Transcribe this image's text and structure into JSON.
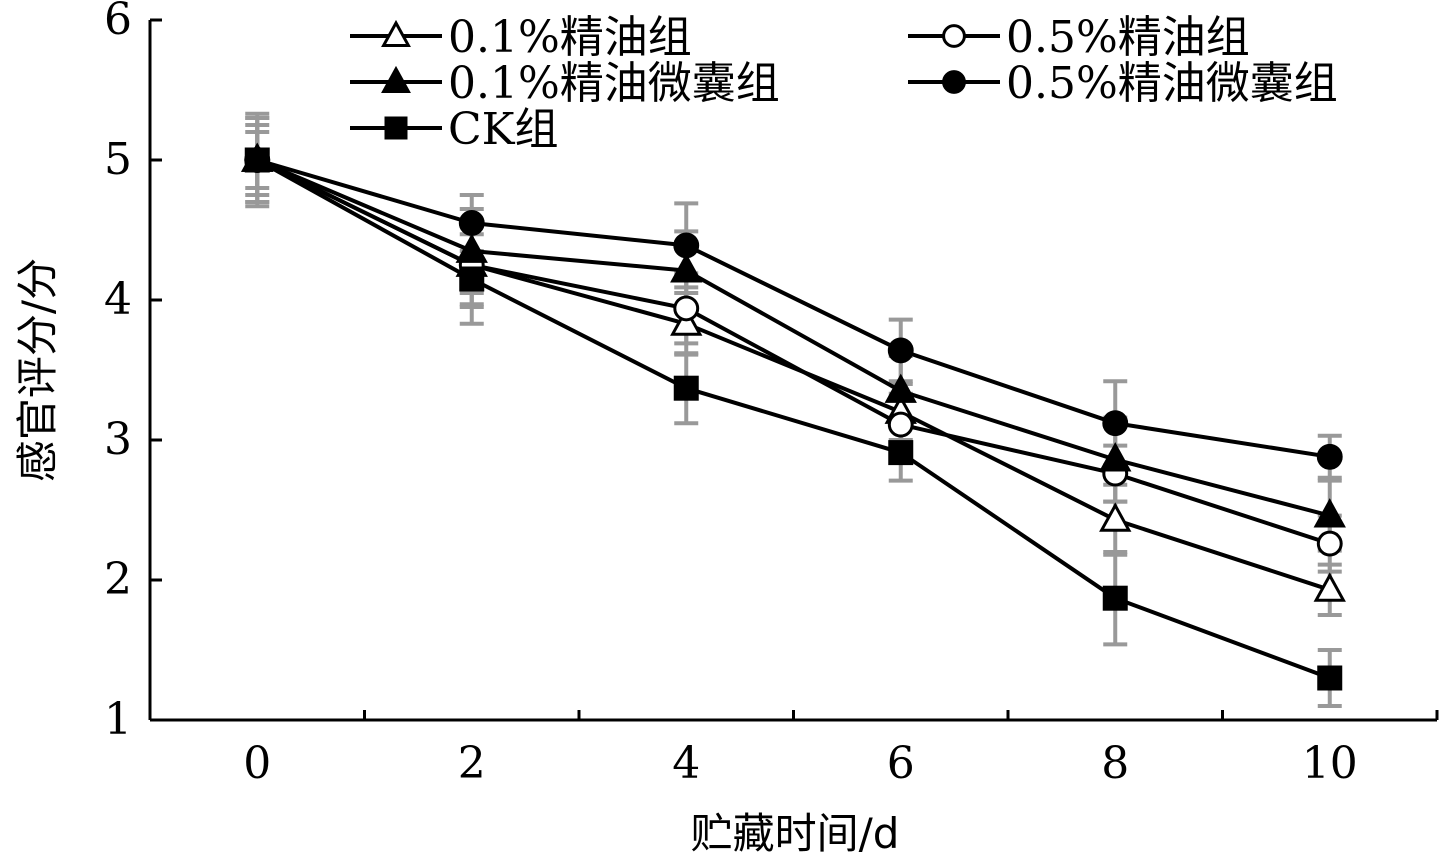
{
  "chart_data": {
    "type": "line",
    "xlabel": "贮藏时间/d",
    "ylabel": "感官评分/分",
    "x": [
      0,
      2,
      4,
      6,
      8,
      10
    ],
    "xlim": [
      -1,
      11
    ],
    "ylim": [
      1,
      6
    ],
    "x_ticks": [
      "0",
      "2",
      "4",
      "6",
      "8",
      "10"
    ],
    "y_ticks": [
      "1",
      "2",
      "3",
      "4",
      "5",
      "6"
    ],
    "grid": false,
    "legend_position": "top",
    "error_bar_color": "#999999",
    "line_color": "#000000",
    "series": [
      {
        "name": "0.1%精油组",
        "marker": "triangle-open",
        "values": [
          5.0,
          4.25,
          3.83,
          3.2,
          2.43,
          1.93
        ],
        "errors": [
          0.25,
          0.28,
          0.22,
          0.2,
          0.25,
          0.18
        ]
      },
      {
        "name": "0.5%精油组",
        "marker": "circle-open",
        "values": [
          5.0,
          4.25,
          3.94,
          3.11,
          2.76,
          2.26
        ],
        "errors": [
          0.2,
          0.3,
          0.25,
          0.22,
          0.2,
          0.2
        ]
      },
      {
        "name": "0.1%精油微囊组",
        "marker": "triangle-filled",
        "values": [
          5.0,
          4.35,
          4.21,
          3.35,
          2.86,
          2.46
        ],
        "errors": [
          0.3,
          0.3,
          0.28,
          0.25,
          0.3,
          0.25
        ]
      },
      {
        "name": "0.5%精油微囊组",
        "marker": "circle-filled",
        "values": [
          5.0,
          4.55,
          4.39,
          3.64,
          3.12,
          2.88
        ],
        "errors": [
          0.33,
          0.2,
          0.3,
          0.22,
          0.3,
          0.15
        ]
      },
      {
        "name": "CK组",
        "marker": "square-filled",
        "values": [
          5.0,
          4.15,
          3.37,
          2.91,
          1.87,
          1.3
        ],
        "errors": [
          0.3,
          0.32,
          0.25,
          0.2,
          0.33,
          0.2
        ]
      }
    ]
  }
}
